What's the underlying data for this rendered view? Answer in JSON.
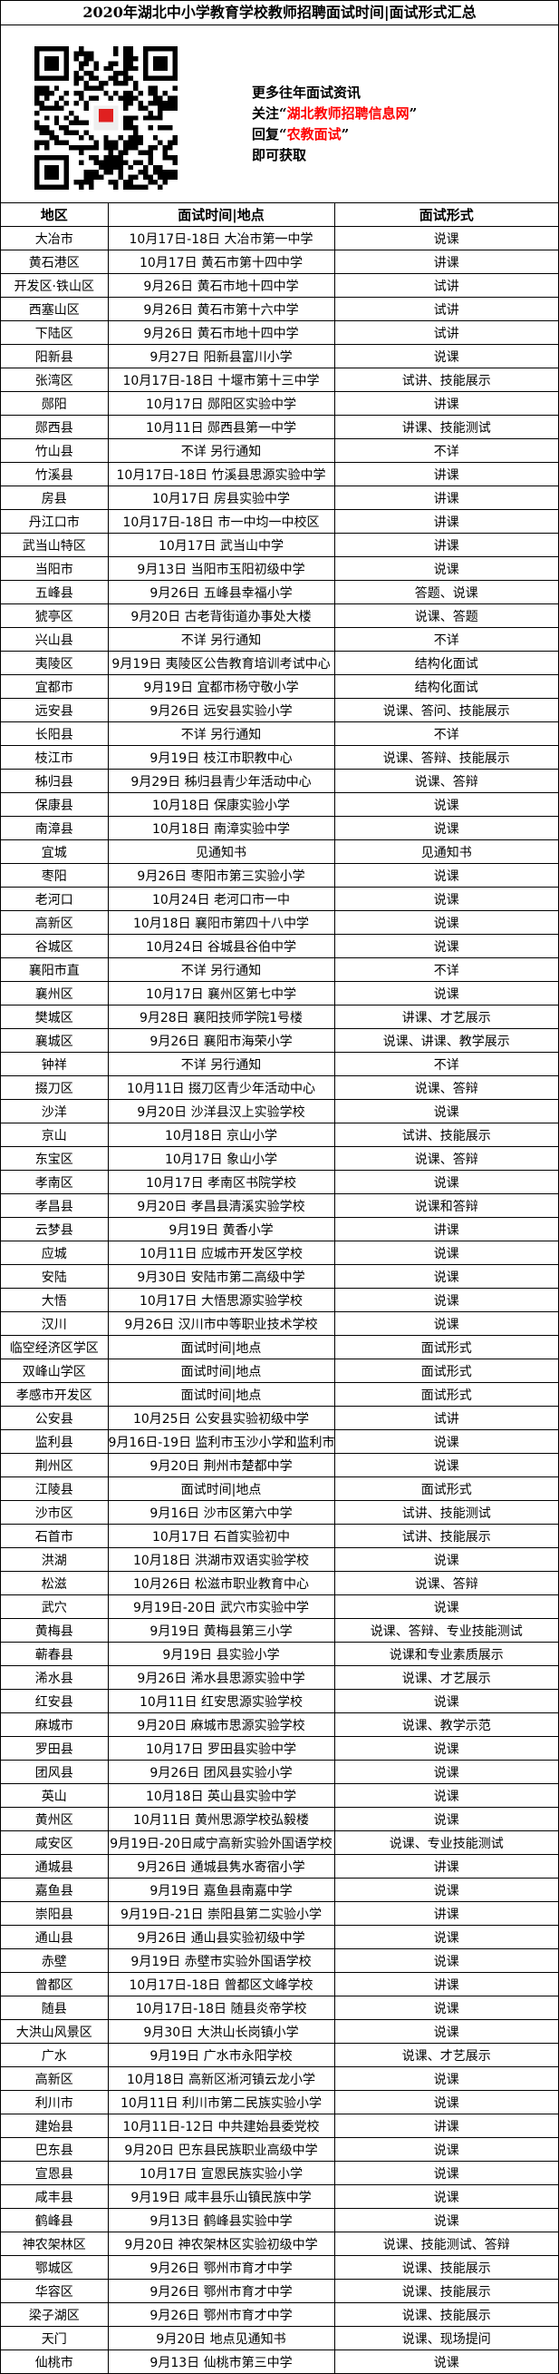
{
  "title": "2020年湖北中小学教育学校教师招聘面试时间|面试形式汇总",
  "promo": {
    "line1": "更多往年面试资讯",
    "line2_prefix": "关注“",
    "line2_highlight": "湖北教师招聘信息网",
    "line2_suffix": "”",
    "line3_prefix": "回复“",
    "line3_highlight": "农教面试",
    "line3_suffix": "”",
    "line4": "即可获取",
    "highlight_color": "#ff0000",
    "qr_icon": "qr-code-icon"
  },
  "table": {
    "headers": [
      "地区",
      "面试时间|地点",
      "面试形式"
    ],
    "rows": [
      [
        "大冶市",
        "10月17日-18日  大冶市第一中学",
        "说课"
      ],
      [
        "黄石港区",
        "10月17日  黄石市第十四中学",
        "讲课"
      ],
      [
        "开发区·铁山区",
        "9月26日  黄石市地十四中学",
        "试讲"
      ],
      [
        "西塞山区",
        "9月26日  黄石市第十六中学",
        "试讲"
      ],
      [
        "下陆区",
        "9月26日  黄石市地十四中学",
        "试讲"
      ],
      [
        "阳新县",
        "9月27日  阳新县富川小学",
        "说课"
      ],
      [
        "张湾区",
        "10月17日-18日  十堰市第十三中学",
        "试讲、技能展示"
      ],
      [
        "郧阳",
        "10月17日  郧阳区实验中学",
        "讲课"
      ],
      [
        "郧西县",
        "10月11日  郧西县第一中学",
        "讲课、技能测试"
      ],
      [
        "竹山县",
        "不详  另行通知",
        "不详"
      ],
      [
        "竹溪县",
        "10月17日-18日  竹溪县思源实验中学",
        "讲课"
      ],
      [
        "房县",
        "10月17日  房县实验中学",
        "讲课"
      ],
      [
        "丹江口市",
        "10月17日-18日  市一中均一中校区",
        "讲课"
      ],
      [
        "武当山特区",
        "10月17日  武当山中学",
        "讲课"
      ],
      [
        "当阳市",
        "9月13日  当阳市玉阳初级中学",
        "说课"
      ],
      [
        "五峰县",
        "9月26日  五峰县幸福小学",
        "答题、说课"
      ],
      [
        "猇亭区",
        "9月20日  古老背街道办事处大楼",
        "说课、答题"
      ],
      [
        "兴山县",
        "不详  另行通知",
        "不详"
      ],
      [
        "夷陵区",
        "9月19日  夷陵区公告教育培训考试中心",
        "结构化面试"
      ],
      [
        "宜都市",
        "9月19日  宜都市杨守敬小学",
        "结构化面试"
      ],
      [
        "远安县",
        "9月26日  远安县实验小学",
        "说课、答问、技能展示"
      ],
      [
        "长阳县",
        "不详  另行通知",
        "不详"
      ],
      [
        "枝江市",
        "9月19日  枝江市职教中心",
        "说课、答辩、技能展示"
      ],
      [
        "秭归县",
        "9月29日  秭归县青少年活动中心",
        "说课、答辩"
      ],
      [
        "保康县",
        "10月18日  保康实验小学",
        "说课"
      ],
      [
        "南漳县",
        "10月18日  南漳实验中学",
        "说课"
      ],
      [
        "宜城",
        "见通知书",
        "见通知书"
      ],
      [
        "枣阳",
        "9月26日  枣阳市第三实验小学",
        "说课"
      ],
      [
        "老河口",
        "10月24日  老河口市一中",
        "说课"
      ],
      [
        "高新区",
        "10月18日  襄阳市第四十八中学",
        "说课"
      ],
      [
        "谷城区",
        "10月24日  谷城县谷伯中学",
        "说课"
      ],
      [
        "襄阳市直",
        "不详  另行通知",
        "不详"
      ],
      [
        "襄州区",
        "10月17日  襄州区第七中学",
        "说课"
      ],
      [
        "樊城区",
        "9月28日  襄阳技师学院1号楼",
        "讲课、才艺展示"
      ],
      [
        "襄城区",
        "9月26日  襄阳市海荣小学",
        "说课、讲课、教学展示"
      ],
      [
        "钟祥",
        "不详  另行通知",
        "不详"
      ],
      [
        "掇刀区",
        "10月11日  掇刀区青少年活动中心",
        "说课、答辩"
      ],
      [
        "沙洋",
        "9月20日  沙洋县汉上实验学校",
        "说课"
      ],
      [
        "京山",
        "10月18日  京山小学",
        "试讲、技能展示"
      ],
      [
        "东宝区",
        "10月17日  象山小学",
        "说课、答辩"
      ],
      [
        "孝南区",
        "10月17日  孝南区书院学校",
        "说课"
      ],
      [
        "孝昌县",
        "9月20日    孝昌县清溪实验学校",
        "说课和答辩"
      ],
      [
        "云梦县",
        "9月19日  黄香小学",
        "讲课"
      ],
      [
        "应城",
        "10月11日     应城市开发区学校",
        "说课"
      ],
      [
        "安陆",
        "9月30日  安陆市第二高级中学",
        "说课"
      ],
      [
        "大悟",
        "10月17日  大悟思源实验学校",
        "说课"
      ],
      [
        "汉川",
        "9月26日  汉川市中等职业技术学校",
        "说课"
      ],
      [
        "临空经济区学区",
        "面试时间|地点",
        "面试形式"
      ],
      [
        "双峰山学区",
        "面试时间|地点",
        "面试形式"
      ],
      [
        "孝感市开发区",
        "面试时间|地点",
        "面试形式"
      ],
      [
        "公安县",
        "10月25日  公安县实验初级中学",
        "试讲"
      ],
      [
        "监利县",
        "9月16日-19日  监利市玉沙小学和监利市职教中心",
        "说课"
      ],
      [
        "荆州区",
        "9月20日  荆州市楚都中学",
        "说课"
      ],
      [
        "江陵县",
        "面试时间|地点",
        "面试形式"
      ],
      [
        "沙市区",
        "9月16日  沙市区第六中学",
        "试讲、技能测试"
      ],
      [
        "石首市",
        "10月17日  石首实验初中",
        "试讲、技能展示"
      ],
      [
        "洪湖",
        "10月18日  洪湖市双语实验学校",
        "说课"
      ],
      [
        "松滋",
        "10月26日  松滋市职业教育中心",
        "说课、答辩"
      ],
      [
        "武穴",
        "9月19日-20日  武穴市实验中学",
        "说课"
      ],
      [
        "黄梅县",
        "9月19日  黄梅县第三小学",
        "说课、答辩、专业技能测试"
      ],
      [
        "蕲春县",
        "9月19日  县实验小学",
        "说课和专业素质展示"
      ],
      [
        "浠水县",
        "9月26日  浠水县思源实验中学",
        "说课、才艺展示"
      ],
      [
        "红安县",
        "10月11日  红安思源实验学校",
        "说课"
      ],
      [
        "麻城市",
        "9月20日  麻城市思源实验学校",
        "说课、教学示范"
      ],
      [
        "罗田县",
        "10月17日  罗田县实验中学",
        "说课"
      ],
      [
        "团风县",
        "9月26日  团风县实验小学",
        "说课"
      ],
      [
        "英山",
        "10月18日  英山县实验中学",
        "说课"
      ],
      [
        "黄州区",
        "10月11日  黄州思源学校弘毅楼",
        "说课"
      ],
      [
        "咸安区",
        "9月19日-20日咸宁高新实验外国语学校",
        "说课、专业技能测试"
      ],
      [
        "通城县",
        "9月26日  通城县隽水寄宿小学",
        "讲课"
      ],
      [
        "嘉鱼县",
        "9月19日  嘉鱼县南嘉中学",
        "说课"
      ],
      [
        "崇阳县",
        "9月19日-21日    崇阳县第二实验小学",
        "讲课"
      ],
      [
        "通山县",
        "9月26日  通山县实验初级中学",
        "说课"
      ],
      [
        "赤壁",
        "9月19日  赤壁市实验外国语学校",
        "说课"
      ],
      [
        "曾都区",
        "10月17日-18日  曾都区文峰学校",
        "讲课"
      ],
      [
        "随县",
        "10月17日-18日  随县炎帝学校",
        "说课"
      ],
      [
        "大洪山风景区",
        "9月30日  大洪山长岗镇小学",
        "说课"
      ],
      [
        "广水",
        "9月19日    广水市永阳学校",
        "说课、才艺展示"
      ],
      [
        "高新区",
        "10月18日  高新区淅河镇云龙小学",
        "说课"
      ],
      [
        "利川市",
        "10月11日  利川市第二民族实验小学",
        "说课"
      ],
      [
        "建始县",
        "10月11日-12日  中共建始县委党校",
        "讲课"
      ],
      [
        "巴东县",
        "9月20日  巴东县民族职业高级中学",
        "说课"
      ],
      [
        "宣恩县",
        "10月17日  宣恩民族实验小学",
        "说课"
      ],
      [
        "咸丰县",
        "9月19日  咸丰县乐山镇民族中学",
        "说课"
      ],
      [
        "鹤峰县",
        "9月13日  鹤峰县实验中学",
        "说课"
      ],
      [
        "神农架林区",
        "9月20日  神农架林区实验初级中学",
        "说课、技能测试、答辩"
      ],
      [
        "鄂城区",
        "9月26日  鄂州市育才中学",
        "说课、技能展示"
      ],
      [
        "华容区",
        "9月26日  鄂州市育才中学",
        "说课、技能展示"
      ],
      [
        "梁子湖区",
        "9月26日  鄂州市育才中学",
        "说课、技能展示"
      ],
      [
        "天门",
        "9月20日  地点见通知书",
        "说课、现场提问"
      ],
      [
        "仙桃市",
        "9月13日  仙桃市第三中学",
        "说课"
      ]
    ]
  }
}
